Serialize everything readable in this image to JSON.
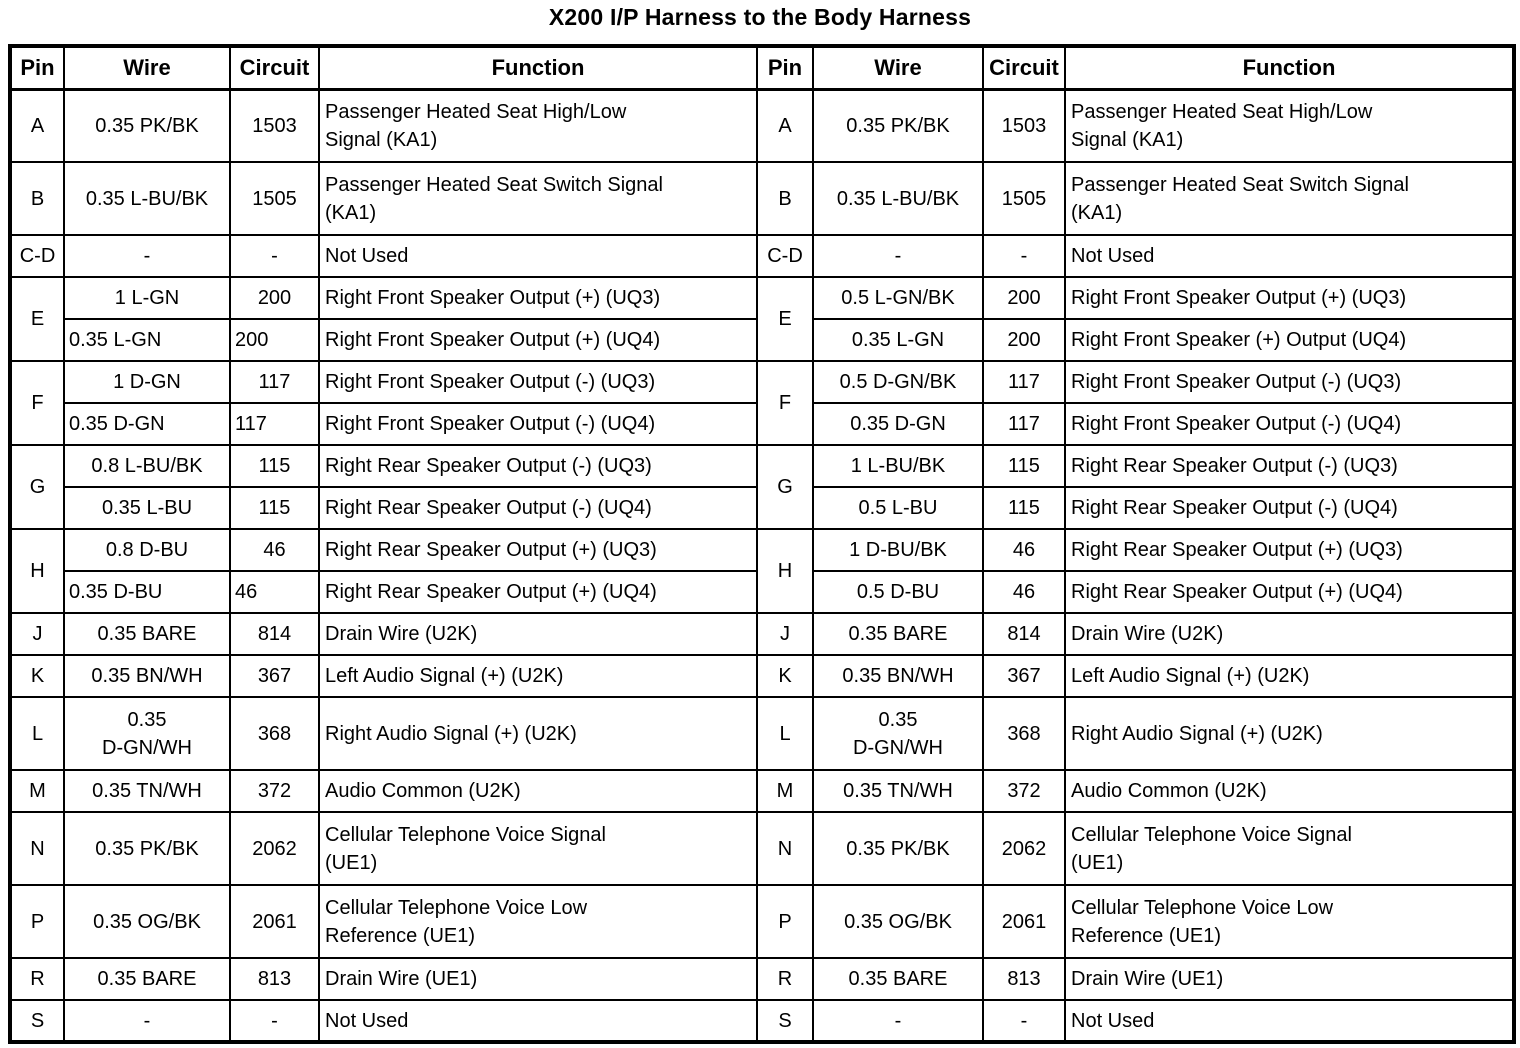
{
  "title": "X200 I/P Harness to the Body Harness",
  "colors": {
    "background": "#ffffff",
    "text": "#000000",
    "border": "#000000"
  },
  "header_columns": [
    "Pin",
    "Wire",
    "Circuit",
    "Function"
  ],
  "left_table": {
    "groups": [
      {
        "pin": "A",
        "rows": [
          {
            "wire": "0.35 PK/BK",
            "circuit": "1503",
            "function": "Passenger Heated Seat High/Low\nSignal (KA1)",
            "tall": true
          }
        ]
      },
      {
        "pin": "B",
        "rows": [
          {
            "wire": "0.35 L-BU/BK",
            "circuit": "1505",
            "function": "Passenger Heated Seat Switch Signal\n(KA1)",
            "tall": true
          }
        ]
      },
      {
        "pin": "C-D",
        "rows": [
          {
            "wire": "-",
            "circuit": "-",
            "function": "Not Used"
          }
        ]
      },
      {
        "pin": "E",
        "rows": [
          {
            "wire": "1 L-GN",
            "circuit": "200",
            "function": "Right Front Speaker Output (+) (UQ3)"
          },
          {
            "wire": "0.35 L-GN",
            "circuit": "200",
            "function": "Right Front Speaker Output (+) (UQ4)",
            "align": "left"
          }
        ]
      },
      {
        "pin": "F",
        "rows": [
          {
            "wire": "1 D-GN",
            "circuit": "117",
            "function": "Right Front Speaker Output (-) (UQ3)"
          },
          {
            "wire": "0.35 D-GN",
            "circuit": "117",
            "function": "Right Front Speaker Output (-) (UQ4)",
            "align": "left"
          }
        ]
      },
      {
        "pin": "G",
        "rows": [
          {
            "wire": "0.8 L-BU/BK",
            "circuit": "115",
            "function": "Right Rear Speaker Output (-) (UQ3)"
          },
          {
            "wire": "0.35 L-BU",
            "circuit": "115",
            "function": "Right Rear Speaker Output (-) (UQ4)"
          }
        ]
      },
      {
        "pin": "H",
        "rows": [
          {
            "wire": "0.8 D-BU",
            "circuit": "46",
            "function": "Right Rear Speaker Output (+) (UQ3)"
          },
          {
            "wire": "0.35 D-BU",
            "circuit": "46",
            "function": "Right Rear Speaker Output (+) (UQ4)",
            "align": "left"
          }
        ]
      },
      {
        "pin": "J",
        "rows": [
          {
            "wire": "0.35 BARE",
            "circuit": "814",
            "function": "Drain Wire (U2K)"
          }
        ]
      },
      {
        "pin": "K",
        "rows": [
          {
            "wire": "0.35 BN/WH",
            "circuit": "367",
            "function": "Left Audio Signal (+) (U2K)"
          }
        ]
      },
      {
        "pin": "L",
        "rows": [
          {
            "wire": "0.35\nD-GN/WH",
            "circuit": "368",
            "function": "Right Audio Signal (+) (U2K)",
            "tall": true
          }
        ]
      },
      {
        "pin": "M",
        "rows": [
          {
            "wire": "0.35 TN/WH",
            "circuit": "372",
            "function": "Audio Common (U2K)"
          }
        ]
      },
      {
        "pin": "N",
        "rows": [
          {
            "wire": "0.35 PK/BK",
            "circuit": "2062",
            "function": "Cellular Telephone Voice Signal\n(UE1)",
            "tall": true
          }
        ]
      },
      {
        "pin": "P",
        "rows": [
          {
            "wire": "0.35 OG/BK",
            "circuit": "2061",
            "function": "Cellular Telephone Voice Low\nReference (UE1)",
            "tall": true
          }
        ]
      },
      {
        "pin": "R",
        "rows": [
          {
            "wire": "0.35 BARE",
            "circuit": "813",
            "function": "Drain Wire (UE1)"
          }
        ]
      },
      {
        "pin": "S",
        "rows": [
          {
            "wire": "-",
            "circuit": "-",
            "function": "Not Used"
          }
        ]
      }
    ]
  },
  "right_table": {
    "groups": [
      {
        "pin": "A",
        "rows": [
          {
            "wire": "0.35 PK/BK",
            "circuit": "1503",
            "function": "Passenger Heated Seat High/Low\nSignal (KA1)",
            "tall": true
          }
        ]
      },
      {
        "pin": "B",
        "rows": [
          {
            "wire": "0.35 L-BU/BK",
            "circuit": "1505",
            "function": "Passenger Heated Seat Switch Signal\n(KA1)",
            "tall": true
          }
        ]
      },
      {
        "pin": "C-D",
        "rows": [
          {
            "wire": "-",
            "circuit": "-",
            "function": "Not Used"
          }
        ]
      },
      {
        "pin": "E",
        "rows": [
          {
            "wire": "0.5 L-GN/BK",
            "circuit": "200",
            "function": "Right Front Speaker Output (+) (UQ3)"
          },
          {
            "wire": "0.35 L-GN",
            "circuit": "200",
            "function": "Right Front Speaker (+) Output (UQ4)"
          }
        ]
      },
      {
        "pin": "F",
        "rows": [
          {
            "wire": "0.5 D-GN/BK",
            "circuit": "117",
            "function": "Right Front Speaker Output (-) (UQ3)"
          },
          {
            "wire": "0.35 D-GN",
            "circuit": "117",
            "function": "Right Front Speaker Output (-) (UQ4)"
          }
        ]
      },
      {
        "pin": "G",
        "rows": [
          {
            "wire": "1 L-BU/BK",
            "circuit": "115",
            "function": "Right Rear Speaker Output (-) (UQ3)"
          },
          {
            "wire": "0.5 L-BU",
            "circuit": "115",
            "function": "Right Rear Speaker Output (-) (UQ4)"
          }
        ]
      },
      {
        "pin": "H",
        "rows": [
          {
            "wire": "1 D-BU/BK",
            "circuit": "46",
            "function": "Right Rear Speaker Output (+) (UQ3)"
          },
          {
            "wire": "0.5 D-BU",
            "circuit": "46",
            "function": "Right Rear Speaker Output (+) (UQ4)"
          }
        ]
      },
      {
        "pin": "J",
        "rows": [
          {
            "wire": "0.35 BARE",
            "circuit": "814",
            "function": "Drain Wire (U2K)"
          }
        ]
      },
      {
        "pin": "K",
        "rows": [
          {
            "wire": "0.35 BN/WH",
            "circuit": "367",
            "function": "Left Audio Signal (+) (U2K)"
          }
        ]
      },
      {
        "pin": "L",
        "rows": [
          {
            "wire": "0.35\nD-GN/WH",
            "circuit": "368",
            "function": "Right Audio Signal (+) (U2K)",
            "tall": true
          }
        ]
      },
      {
        "pin": "M",
        "rows": [
          {
            "wire": "0.35 TN/WH",
            "circuit": "372",
            "function": "Audio Common (U2K)"
          }
        ]
      },
      {
        "pin": "N",
        "rows": [
          {
            "wire": "0.35 PK/BK",
            "circuit": "2062",
            "function": "Cellular Telephone Voice Signal\n(UE1)",
            "tall": true
          }
        ]
      },
      {
        "pin": "P",
        "rows": [
          {
            "wire": "0.35 OG/BK",
            "circuit": "2061",
            "function": "Cellular Telephone Voice Low\nReference (UE1)",
            "tall": true
          }
        ]
      },
      {
        "pin": "R",
        "rows": [
          {
            "wire": "0.35 BARE",
            "circuit": "813",
            "function": "Drain Wire (UE1)"
          }
        ]
      },
      {
        "pin": "S",
        "rows": [
          {
            "wire": "-",
            "circuit": "-",
            "function": "Not Used"
          }
        ]
      }
    ]
  }
}
